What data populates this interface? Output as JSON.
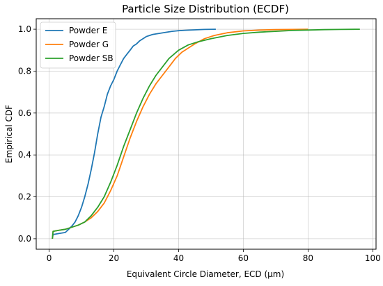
{
  "chart_data": {
    "type": "line",
    "title": "Particle Size Distribution (ECDF)",
    "xlabel": "Equivalent Circle Diameter, ECD (µm)",
    "ylabel": "Empirical CDF",
    "xlim": [
      -4,
      101
    ],
    "ylim": [
      -0.05,
      1.05
    ],
    "xticks": [
      0,
      20,
      40,
      60,
      80,
      100
    ],
    "yticks": [
      0.0,
      0.2,
      0.4,
      0.6,
      0.8,
      1.0
    ],
    "xtick_labels": [
      "0",
      "20",
      "40",
      "60",
      "80",
      "100"
    ],
    "ytick_labels": [
      "0.0",
      "0.2",
      "0.4",
      "0.6",
      "0.8",
      "1.0"
    ],
    "grid": true,
    "legend_position": "top-left",
    "series": [
      {
        "name": "Powder E",
        "color": "#1f77b4",
        "x": [
          1,
          1.2,
          3,
          5,
          6,
          7,
          8,
          9,
          10,
          11,
          12,
          13,
          14,
          15,
          16,
          17,
          18,
          19,
          20,
          21,
          22,
          23,
          24,
          25,
          26,
          27,
          28,
          29,
          30,
          31,
          32,
          34,
          36,
          38,
          40,
          42,
          45,
          48,
          51.5
        ],
        "y": [
          0.0,
          0.02,
          0.025,
          0.03,
          0.045,
          0.06,
          0.08,
          0.11,
          0.15,
          0.2,
          0.26,
          0.33,
          0.41,
          0.5,
          0.58,
          0.63,
          0.69,
          0.73,
          0.76,
          0.8,
          0.83,
          0.86,
          0.88,
          0.9,
          0.92,
          0.93,
          0.945,
          0.955,
          0.965,
          0.97,
          0.975,
          0.98,
          0.985,
          0.99,
          0.993,
          0.995,
          0.997,
          0.999,
          1.0
        ]
      },
      {
        "name": "Powder G",
        "color": "#ff7f0e",
        "x": [
          1,
          1.2,
          3,
          5,
          7,
          9,
          11,
          13,
          15,
          17,
          19,
          21,
          23,
          25,
          27,
          29,
          31,
          33,
          35,
          37,
          39,
          41,
          43,
          45,
          48,
          51,
          55,
          60,
          65,
          70,
          75,
          80
        ],
        "y": [
          0.0,
          0.035,
          0.04,
          0.045,
          0.055,
          0.065,
          0.08,
          0.1,
          0.13,
          0.17,
          0.23,
          0.3,
          0.39,
          0.48,
          0.56,
          0.63,
          0.69,
          0.74,
          0.78,
          0.82,
          0.86,
          0.89,
          0.91,
          0.93,
          0.955,
          0.97,
          0.983,
          0.992,
          0.996,
          0.998,
          0.999,
          1.0
        ]
      },
      {
        "name": "Powder SB",
        "color": "#2ca02c",
        "x": [
          1,
          1.2,
          3,
          5,
          7,
          9,
          11,
          13,
          15,
          17,
          19,
          21,
          23,
          25,
          27,
          29,
          31,
          33,
          35,
          37,
          40,
          43,
          46,
          50,
          55,
          60,
          65,
          70,
          75,
          80,
          85,
          90,
          96
        ],
        "y": [
          0.0,
          0.035,
          0.04,
          0.045,
          0.055,
          0.065,
          0.08,
          0.11,
          0.15,
          0.2,
          0.27,
          0.35,
          0.44,
          0.52,
          0.6,
          0.67,
          0.73,
          0.78,
          0.82,
          0.86,
          0.9,
          0.925,
          0.94,
          0.955,
          0.97,
          0.98,
          0.986,
          0.99,
          0.994,
          0.996,
          0.998,
          0.999,
          1.0
        ]
      }
    ]
  }
}
